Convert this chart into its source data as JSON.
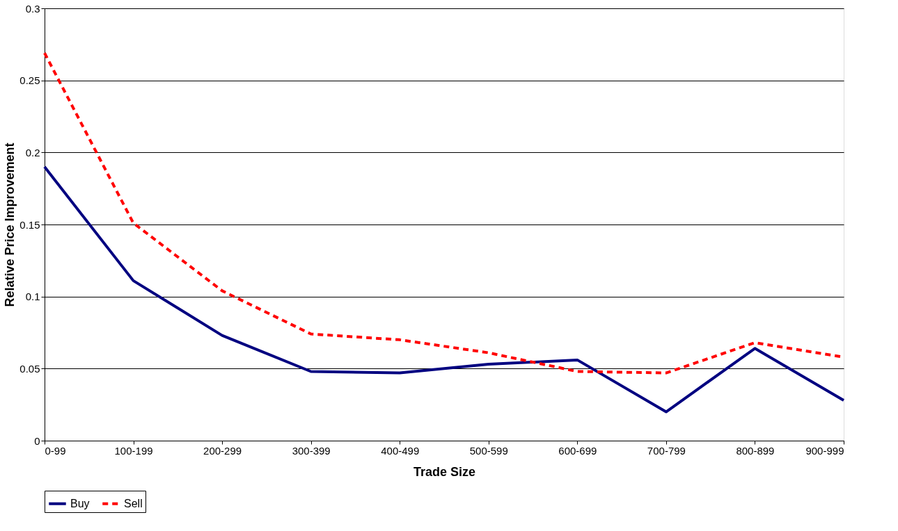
{
  "chart_data": {
    "type": "line",
    "xlabel": "Trade Size",
    "ylabel": "Relative Price Improvement",
    "categories": [
      "0-99",
      "100-199",
      "200-299",
      "300-399",
      "400-499",
      "500-599",
      "600-699",
      "700-799",
      "800-899",
      "900-999"
    ],
    "series": [
      {
        "name": "Buy",
        "color": "#000080",
        "line_style": "solid",
        "values": [
          0.19,
          0.111,
          0.073,
          0.048,
          0.047,
          0.053,
          0.056,
          0.02,
          0.064,
          0.028
        ]
      },
      {
        "name": "Sell",
        "color": "#ff0000",
        "line_style": "dashed",
        "values": [
          0.269,
          0.151,
          0.104,
          0.074,
          0.07,
          0.061,
          0.048,
          0.047,
          0.068,
          0.058
        ]
      }
    ],
    "ylim": [
      0,
      0.3
    ],
    "yticks": [
      0,
      0.05,
      0.1,
      0.15,
      0.2,
      0.25,
      0.3
    ],
    "grid": "y",
    "legend": "bottom",
    "marker": "none"
  }
}
